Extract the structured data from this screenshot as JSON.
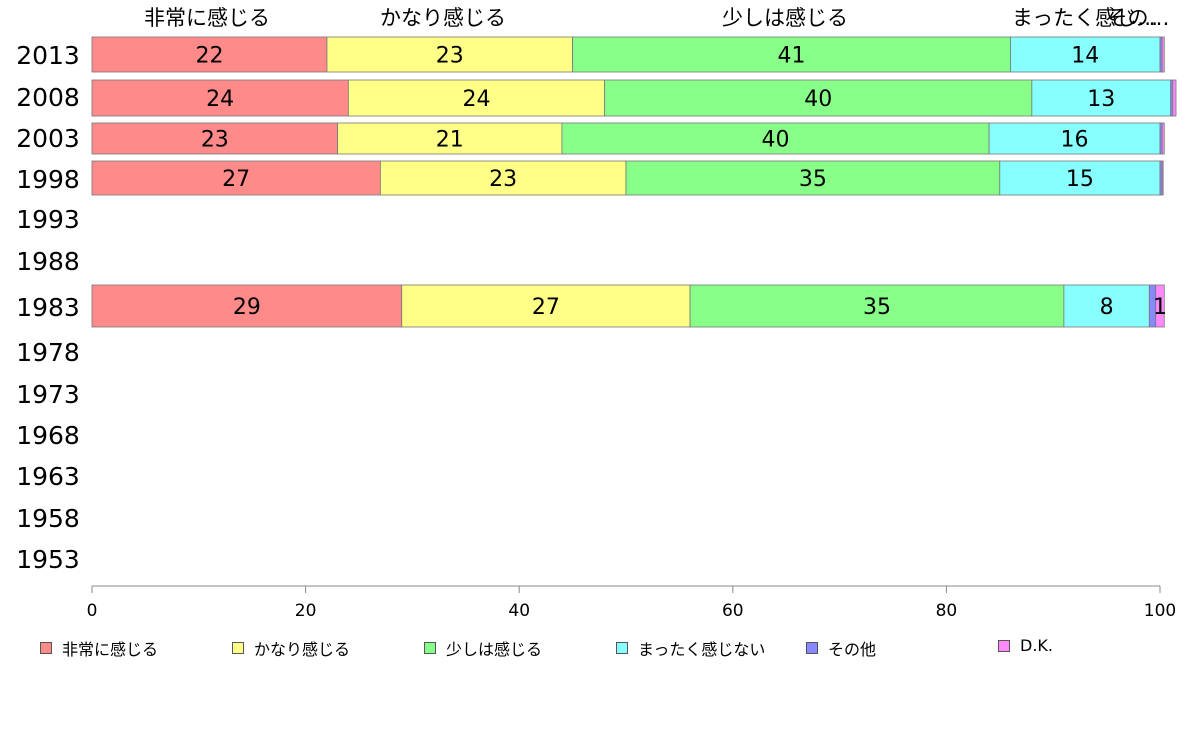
{
  "chart_data": {
    "type": "bar",
    "orientation": "horizontal",
    "stacked": true,
    "categories": [
      "2013",
      "2008",
      "2003",
      "1998",
      "1993",
      "1988",
      "1983",
      "1978",
      "1973",
      "1968",
      "1963",
      "1958",
      "1953"
    ],
    "series": [
      {
        "name": "非常に感じる",
        "color": "#ff8a8a",
        "values": [
          22,
          24,
          23,
          27,
          null,
          null,
          29,
          null,
          null,
          null,
          null,
          null,
          null
        ]
      },
      {
        "name": "かなり感じる",
        "color": "#ffff88",
        "values": [
          23,
          24,
          21,
          23,
          null,
          null,
          27,
          null,
          null,
          null,
          null,
          null,
          null
        ]
      },
      {
        "name": "少しは感じる",
        "color": "#88ff88",
        "values": [
          41,
          40,
          40,
          35,
          null,
          null,
          35,
          null,
          null,
          null,
          null,
          null,
          null
        ]
      },
      {
        "name": "まったく感じない",
        "color": "#88ffff",
        "values": [
          14,
          13,
          16,
          15,
          null,
          null,
          8,
          null,
          null,
          null,
          null,
          null,
          null
        ]
      },
      {
        "name": "その他",
        "color": "#8888ff",
        "values": [
          0.2,
          0.2,
          0.2,
          0.2,
          null,
          null,
          0.6,
          null,
          null,
          null,
          null,
          null,
          null
        ]
      },
      {
        "name": "D.K.",
        "color": "#ff88ff",
        "values": [
          0.2,
          0.3,
          0.2,
          0.1,
          null,
          null,
          0.8,
          null,
          null,
          null,
          null,
          null,
          null
        ]
      }
    ],
    "data_labels": [
      [
        "22",
        "23",
        "41",
        "14",
        "",
        ""
      ],
      [
        "24",
        "24",
        "40",
        "13",
        "",
        ""
      ],
      [
        "23",
        "21",
        "40",
        "16",
        "",
        ""
      ],
      [
        "27",
        "23",
        "35",
        "15",
        "",
        ""
      ],
      [],
      [],
      [
        "29",
        "27",
        "35",
        "8",
        "",
        "1"
      ]
    ],
    "top_labels": [
      "非常に感じる",
      "かなり感じる",
      "少しは感じる",
      "まったく感じ…",
      "その…"
    ],
    "xlim": [
      0,
      100
    ],
    "xticks": [
      "0",
      "20",
      "40",
      "60",
      "80",
      "100"
    ],
    "legend_position": "bottom",
    "grid": false
  }
}
